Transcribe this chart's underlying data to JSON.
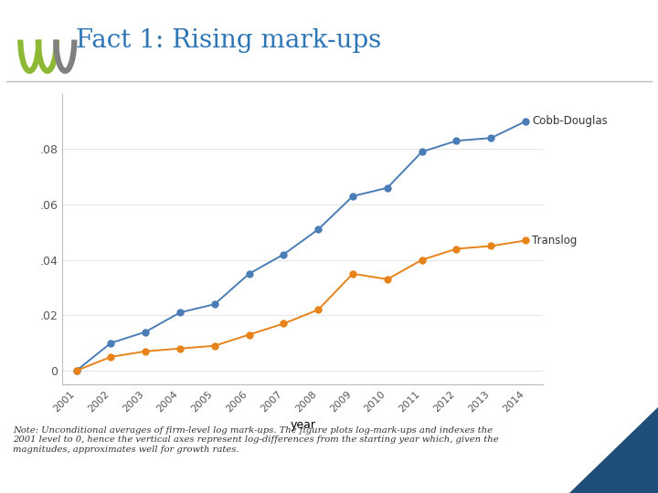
{
  "title": "Fact 1: Rising mark-ups",
  "title_color": "#2E75B6",
  "background_color": "#FFFFFF",
  "years": [
    2001,
    2002,
    2003,
    2004,
    2005,
    2006,
    2007,
    2008,
    2009,
    2010,
    2011,
    2012,
    2013,
    2014
  ],
  "cobb_douglas": [
    0.0,
    0.01,
    0.014,
    0.021,
    0.024,
    0.035,
    0.042,
    0.051,
    0.063,
    0.066,
    0.079,
    0.083,
    0.084,
    0.09
  ],
  "translog": [
    0.0,
    0.005,
    0.007,
    0.008,
    0.009,
    0.013,
    0.017,
    0.022,
    0.035,
    0.033,
    0.04,
    0.044,
    0.045,
    0.047
  ],
  "cd_color": "#4a7db5",
  "translog_color": "#E8821A",
  "cd_label": "Cobb-Douglas",
  "translog_label": "Translog",
  "xlabel": "year",
  "ylim": [
    -0.005,
    0.1
  ],
  "yticks": [
    0.0,
    0.02,
    0.04,
    0.06,
    0.08
  ],
  "ytick_labels": [
    "0",
    ".02",
    ".04",
    ".06",
    ".08"
  ],
  "note_text": "Note: Unconditional averages of firm-level log mark-ups. The figure plots log-mark-ups and indexes the\n2001 level to 0, hence the vertical axes represent log-differences from the starting year which, given the\nmagnitudes, approximates well for growth rates.",
  "separator_color": "#BBBBBB",
  "grid_color": "#E0E0E0",
  "oeco_green": "#8DB834",
  "oeco_gray": "#808080",
  "tri_color": "#1F4E79"
}
